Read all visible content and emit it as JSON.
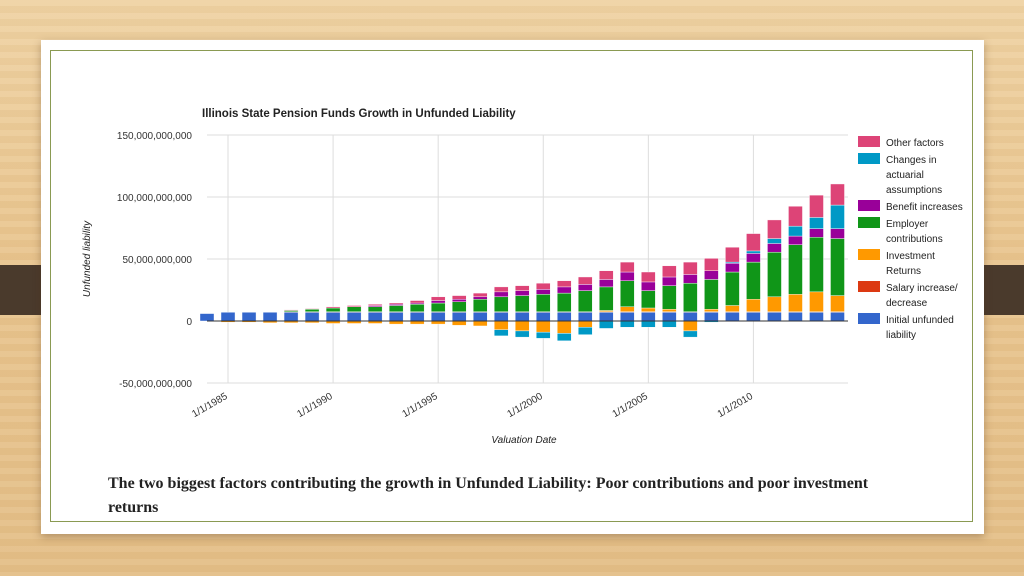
{
  "caption": "The two biggest factors contributing the growth in Unfunded Liability: Poor contributions and poor investment returns",
  "chart_data": {
    "type": "bar",
    "stacked": true,
    "title": "Illinois State Pension Funds Growth in Unfunded Liability",
    "xlabel": "Valuation Date",
    "ylabel": "Unfunded liability",
    "ylim": [
      -50000000000,
      150000000000
    ],
    "yticks": [
      {
        "value": 150000000000,
        "label": "150,000,000,000"
      },
      {
        "value": 100000000000,
        "label": "100,000,000,000"
      },
      {
        "value": 50000000000,
        "label": "50,000,000,000"
      },
      {
        "value": 0,
        "label": "0"
      },
      {
        "value": -50000000000,
        "label": "-50,000,000,000"
      }
    ],
    "xticks": [
      "1/1/1985",
      "1/1/1990",
      "1/1/1995",
      "1/1/2000",
      "1/1/2005",
      "1/1/2010"
    ],
    "xtick_years": [
      1985,
      1990,
      1995,
      2000,
      2005,
      2010
    ],
    "x_range": [
      1984,
      2014.5
    ],
    "grid": true,
    "legend_position": "right",
    "categories": [
      1984,
      1985,
      1986,
      1987,
      1988,
      1989,
      1990,
      1991,
      1992,
      1993,
      1994,
      1995,
      1996,
      1997,
      1998,
      1999,
      2000,
      2001,
      2002,
      2003,
      2004,
      2005,
      2006,
      2007,
      2008,
      2009,
      2010,
      2011,
      2012,
      2013,
      2014
    ],
    "series": [
      {
        "name": "Initial unfunded liability",
        "color": "#3366cc",
        "values": [
          6000000000.0,
          7000000000.0,
          7000000000.0,
          7000000000.0,
          7000000000.0,
          7000000000.0,
          7000000000.0,
          7000000000.0,
          7000000000.0,
          7000000000.0,
          7000000000.0,
          7000000000.0,
          7000000000.0,
          7000000000.0,
          7000000000.0,
          7000000000.0,
          7000000000.0,
          7000000000.0,
          7000000000.0,
          7000000000.0,
          7000000000.0,
          7000000000.0,
          7000000000.0,
          7000000000.0,
          7000000000.0,
          7000000000.0,
          7000000000.0,
          7000000000.0,
          7000000000.0,
          7000000000.0,
          7000000000.0
        ]
      },
      {
        "name": "Salary increase/ decrease",
        "color": "#dc3912",
        "values": [
          0,
          0,
          0,
          0,
          500000000.0,
          500000000.0,
          500000000.0,
          500000000.0,
          500000000.0,
          500000000.0,
          500000000.0,
          500000000.0,
          500000000.0,
          500000000.0,
          500000000.0,
          500000000.0,
          500000000.0,
          500000000.0,
          500000000.0,
          500000000.0,
          500000000.0,
          500000000.0,
          500000000.0,
          500000000.0,
          500000000.0,
          500000000.0,
          500000000.0,
          500000000.0,
          500000000.0,
          500000000.0,
          500000000.0
        ]
      },
      {
        "name": "Investment Returns",
        "color": "#ff9900",
        "values": [
          0,
          -1000000000.0,
          -1000000000.0,
          -1500000000.0,
          -1500000000.0,
          -1500000000.0,
          -2000000000.0,
          -2000000000.0,
          -2000000000.0,
          -2500000000.0,
          -2500000000.0,
          -2500000000.0,
          -3500000000.0,
          -4000000000.0,
          -7000000000.0,
          -8000000000.0,
          -9000000000.0,
          -10000000000.0,
          -5000000000.0,
          1000000000.0,
          4000000000.0,
          3000000000.0,
          2000000000.0,
          -8000000000.0,
          2000000000.0,
          5000000000.0,
          10000000000.0,
          12000000000.0,
          14000000000.0,
          16000000000.0,
          13000000000.0
        ]
      },
      {
        "name": "Employer contributions",
        "color": "#109618",
        "values": [
          0,
          0,
          0,
          0,
          1000000000.0,
          2000000000.0,
          3000000000.0,
          4000000000.0,
          4000000000.0,
          5000000000.0,
          6000000000.0,
          7000000000.0,
          8000000000.0,
          10000000000.0,
          12000000000.0,
          13000000000.0,
          14000000000.0,
          15000000000.0,
          17000000000.0,
          19000000000.0,
          21000000000.0,
          14000000000.0,
          19000000000.0,
          23000000000.0,
          24000000000.0,
          27000000000.0,
          30000000000.0,
          36000000000.0,
          40000000000.0,
          44000000000.0,
          46000000000.0
        ]
      },
      {
        "name": "Benefit increases",
        "color": "#990099",
        "values": [
          0,
          0,
          0,
          0,
          0,
          0,
          0,
          0,
          1000000000.0,
          1000000000.0,
          1000000000.0,
          2000000000.0,
          2000000000.0,
          2000000000.0,
          4000000000.0,
          4000000000.0,
          4000000000.0,
          5000000000.0,
          5000000000.0,
          6000000000.0,
          7000000000.0,
          7000000000.0,
          7000000000.0,
          7000000000.0,
          7000000000.0,
          7000000000.0,
          7000000000.0,
          7000000000.0,
          7000000000.0,
          7000000000.0,
          8000000000.0
        ]
      },
      {
        "name": "Changes in actuarial assumptions",
        "color": "#0099c6",
        "values": [
          0,
          0,
          0,
          0,
          0,
          0,
          0,
          0,
          0,
          0,
          0,
          0,
          0,
          0,
          -5000000000.0,
          -5000000000.0,
          -5000000000.0,
          -6000000000.0,
          -6000000000.0,
          -6000000000.0,
          -5000000000.0,
          -5000000000.0,
          -5000000000.0,
          -5000000000.0,
          -1000000000.0,
          1000000000.0,
          2000000000.0,
          4000000000.0,
          8000000000.0,
          9000000000.0,
          19000000000.0
        ]
      },
      {
        "name": "Other factors",
        "color": "#dd4477",
        "values": [
          0,
          0,
          0,
          0,
          500000000.0,
          500000000.0,
          1000000000.0,
          1000000000.0,
          1000000000.0,
          1000000000.0,
          2000000000.0,
          3000000000.0,
          3000000000.0,
          3000000000.0,
          4000000000.0,
          4000000000.0,
          5000000000.0,
          5000000000.0,
          6000000000.0,
          7000000000.0,
          8000000000.0,
          8000000000.0,
          9000000000.0,
          10000000000.0,
          10000000000.0,
          12000000000.0,
          14000000000.0,
          15000000000.0,
          16000000000.0,
          18000000000.0,
          17000000000.0
        ]
      }
    ]
  },
  "legend": [
    {
      "label": "Other factors",
      "color": "#dd4477"
    },
    {
      "label": "Changes in actuarial assumptions",
      "color": "#0099c6"
    },
    {
      "label": "Benefit increases",
      "color": "#990099"
    },
    {
      "label": "Employer contributions",
      "color": "#109618"
    },
    {
      "label": "Investment Returns",
      "color": "#ff9900"
    },
    {
      "label": "Salary increase/ decrease",
      "color": "#dc3912"
    },
    {
      "label": "Initial unfunded liability",
      "color": "#3366cc"
    }
  ]
}
